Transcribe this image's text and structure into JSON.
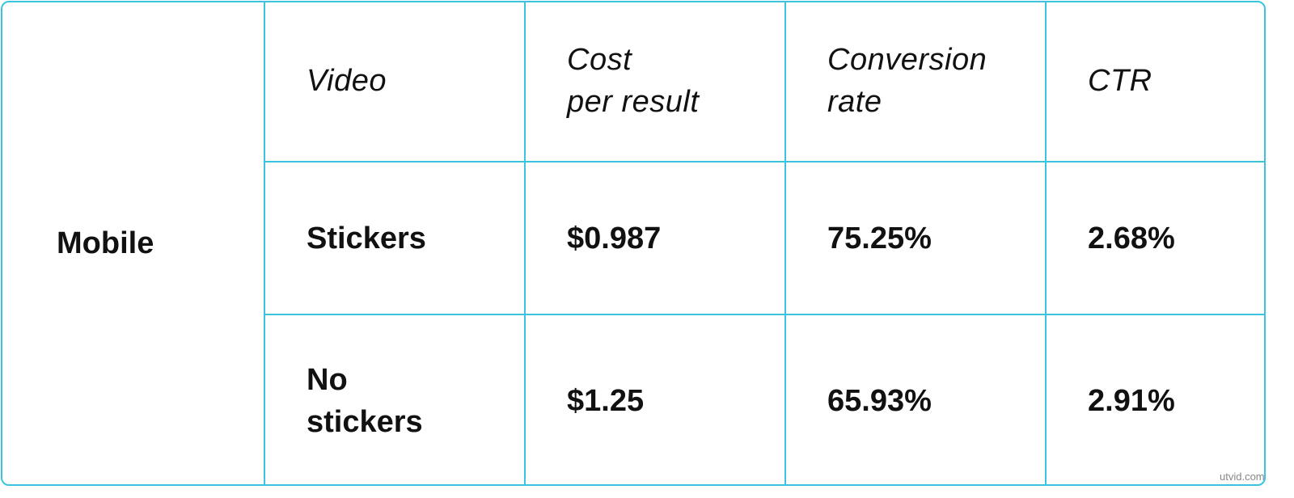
{
  "table": {
    "row_header": "Mobile",
    "header": [
      "Video",
      "Cost\nper result",
      "Conversion\nrate",
      "CTR"
    ],
    "rows": [
      [
        "Stickers",
        "$0.987",
        "75.25%",
        "2.68%"
      ],
      [
        "No\nstickers",
        "$1.25",
        "65.93%",
        "2.91%"
      ]
    ]
  },
  "watermark": "utvid.com"
}
